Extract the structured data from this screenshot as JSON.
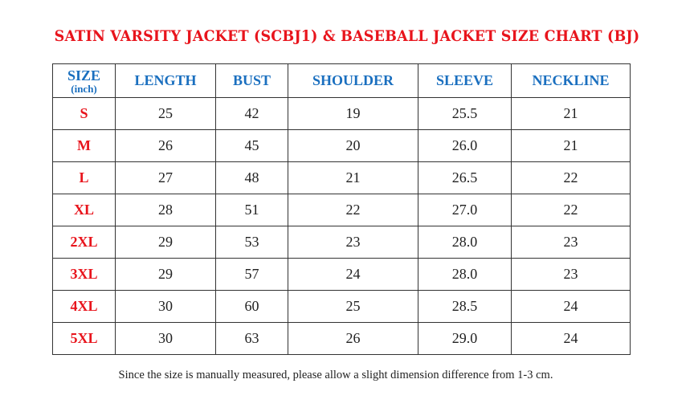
{
  "title": "SATIN VARSITY JACKET (SCBJ1) & BASEBALL JACKET SIZE CHART (BJ)",
  "table": {
    "size_header": "SIZE",
    "size_unit": "(inch)",
    "columns": [
      "LENGTH",
      "BUST",
      "SHOULDER",
      "SLEEVE",
      "NECKLINE"
    ],
    "rows": [
      {
        "size": "S",
        "values": [
          "25",
          "42",
          "19",
          "25.5",
          "21"
        ]
      },
      {
        "size": "M",
        "values": [
          "26",
          "45",
          "20",
          "26.0",
          "21"
        ]
      },
      {
        "size": "L",
        "values": [
          "27",
          "48",
          "21",
          "26.5",
          "22"
        ]
      },
      {
        "size": "XL",
        "values": [
          "28",
          "51",
          "22",
          "27.0",
          "22"
        ]
      },
      {
        "size": "2XL",
        "values": [
          "29",
          "53",
          "23",
          "28.0",
          "23"
        ]
      },
      {
        "size": "3XL",
        "values": [
          "29",
          "57",
          "24",
          "28.0",
          "23"
        ]
      },
      {
        "size": "4XL",
        "values": [
          "30",
          "60",
          "25",
          "28.5",
          "24"
        ]
      },
      {
        "size": "5XL",
        "values": [
          "30",
          "63",
          "26",
          "29.0",
          "24"
        ]
      }
    ]
  },
  "note": "Since the size is manually measured, please allow a slight dimension difference from 1-3 cm.",
  "colors": {
    "title": "#e8141c",
    "header": "#1a6fbf",
    "size_label": "#e8141c"
  }
}
